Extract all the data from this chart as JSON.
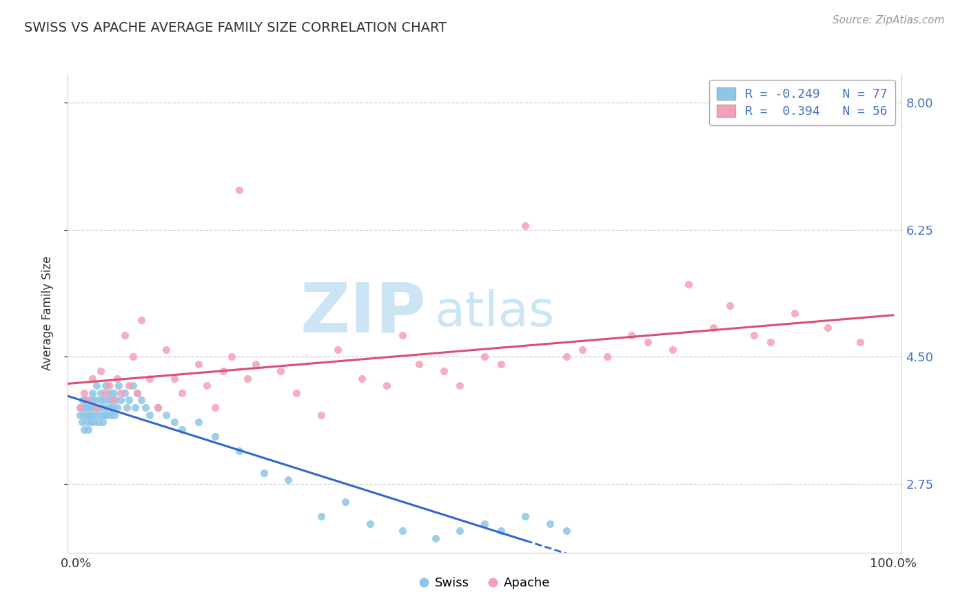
{
  "title": "SWISS VS APACHE AVERAGE FAMILY SIZE CORRELATION CHART",
  "source": "Source: ZipAtlas.com",
  "ylabel": "Average Family Size",
  "ytick_values": [
    2.75,
    4.5,
    6.25,
    8.0
  ],
  "ytick_labels": [
    "2.75",
    "4.50",
    "6.25",
    "8.00"
  ],
  "xlim": [
    -0.01,
    1.01
  ],
  "ylim": [
    1.8,
    8.4
  ],
  "title_color": "#333333",
  "title_fontsize": 14,
  "swiss_color": "#8ec6e8",
  "apache_color": "#f4a0b8",
  "swiss_line_color": "#3366cc",
  "apache_line_color": "#d94f70",
  "background_color": "#ffffff",
  "grid_color": "#cccccc",
  "axis_text_color": "#4472c4",
  "swiss_x": [
    0.005,
    0.006,
    0.007,
    0.008,
    0.009,
    0.01,
    0.01,
    0.011,
    0.012,
    0.013,
    0.014,
    0.015,
    0.016,
    0.017,
    0.018,
    0.019,
    0.02,
    0.02,
    0.021,
    0.022,
    0.023,
    0.024,
    0.025,
    0.026,
    0.027,
    0.028,
    0.03,
    0.03,
    0.031,
    0.032,
    0.033,
    0.034,
    0.035,
    0.036,
    0.037,
    0.038,
    0.04,
    0.041,
    0.042,
    0.043,
    0.044,
    0.045,
    0.046,
    0.047,
    0.048,
    0.05,
    0.052,
    0.055,
    0.06,
    0.062,
    0.065,
    0.07,
    0.072,
    0.075,
    0.08,
    0.085,
    0.09,
    0.1,
    0.11,
    0.12,
    0.13,
    0.15,
    0.17,
    0.2,
    0.23,
    0.26,
    0.3,
    0.33,
    0.36,
    0.4,
    0.44,
    0.47,
    0.5,
    0.52,
    0.55,
    0.58,
    0.6
  ],
  "swiss_y": [
    3.7,
    3.8,
    3.6,
    3.9,
    3.7,
    3.8,
    3.5,
    3.9,
    3.8,
    3.6,
    3.7,
    3.5,
    3.8,
    3.7,
    3.6,
    3.9,
    3.8,
    4.0,
    3.7,
    3.6,
    3.9,
    3.8,
    4.1,
    3.7,
    3.8,
    3.6,
    3.9,
    4.0,
    3.7,
    3.8,
    3.6,
    3.9,
    3.7,
    4.1,
    3.8,
    3.7,
    3.9,
    4.0,
    3.8,
    3.7,
    3.9,
    3.8,
    4.0,
    3.7,
    3.9,
    3.8,
    4.1,
    3.9,
    4.0,
    3.8,
    3.9,
    4.1,
    3.8,
    4.0,
    3.9,
    3.8,
    3.7,
    3.8,
    3.7,
    3.6,
    3.5,
    3.6,
    3.4,
    3.2,
    2.9,
    2.8,
    2.3,
    2.5,
    2.2,
    2.1,
    2.0,
    2.1,
    2.2,
    2.1,
    2.3,
    2.2,
    2.1
  ],
  "apache_x": [
    0.005,
    0.01,
    0.015,
    0.02,
    0.025,
    0.03,
    0.035,
    0.04,
    0.045,
    0.05,
    0.055,
    0.06,
    0.065,
    0.07,
    0.075,
    0.08,
    0.09,
    0.1,
    0.11,
    0.12,
    0.13,
    0.2,
    0.15,
    0.16,
    0.17,
    0.18,
    0.19,
    0.21,
    0.22,
    0.25,
    0.27,
    0.3,
    0.32,
    0.35,
    0.38,
    0.4,
    0.42,
    0.45,
    0.55,
    0.47,
    0.5,
    0.52,
    0.6,
    0.62,
    0.65,
    0.68,
    0.7,
    0.73,
    0.75,
    0.78,
    0.8,
    0.83,
    0.85,
    0.88,
    0.92,
    0.96
  ],
  "apache_y": [
    3.8,
    4.0,
    3.9,
    4.2,
    3.8,
    4.3,
    4.0,
    4.1,
    3.9,
    4.2,
    4.0,
    4.8,
    4.1,
    4.5,
    4.0,
    5.0,
    4.2,
    3.8,
    4.6,
    4.2,
    4.0,
    6.8,
    4.4,
    4.1,
    3.8,
    4.3,
    4.5,
    4.2,
    4.4,
    4.3,
    4.0,
    3.7,
    4.6,
    4.2,
    4.1,
    4.8,
    4.4,
    4.3,
    6.3,
    4.1,
    4.5,
    4.4,
    4.5,
    4.6,
    4.5,
    4.8,
    4.7,
    4.6,
    5.5,
    4.9,
    5.2,
    4.8,
    4.7,
    5.1,
    4.9,
    4.7
  ],
  "swiss_line_xmax": 0.55,
  "swiss_line_xfull": 1.0
}
